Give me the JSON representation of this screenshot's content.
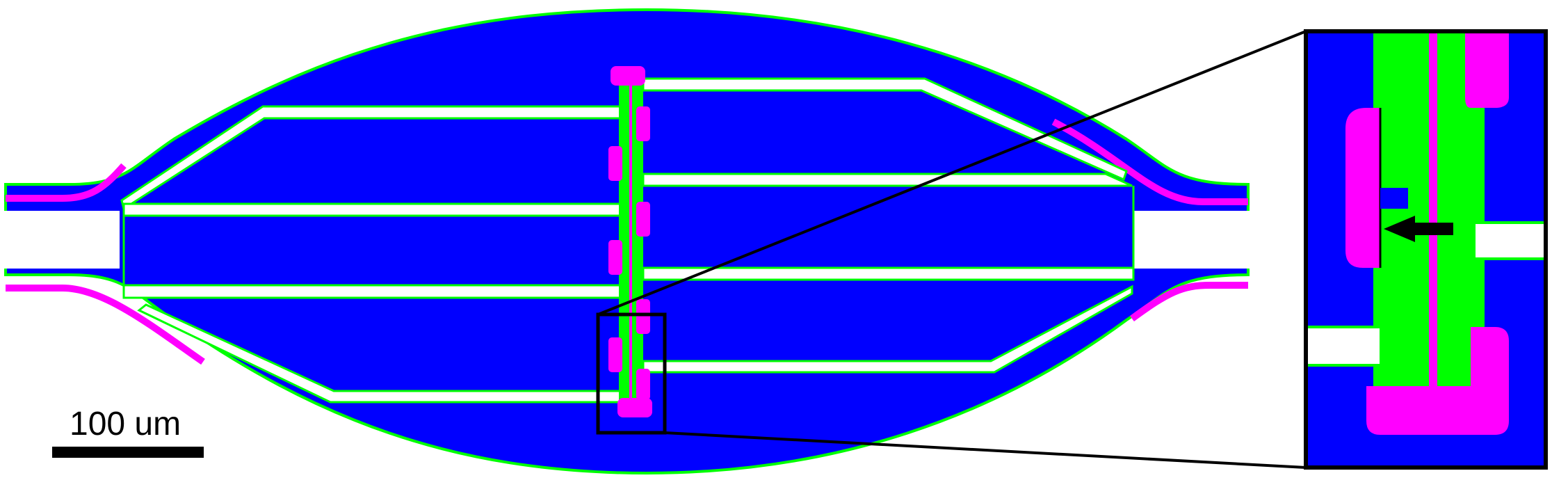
{
  "scale_bar": {
    "label": "100 um"
  },
  "colors": {
    "background": "#ffffff",
    "substrate": "#0000ff",
    "outline": "#00ff00",
    "electrode_stripe": "#ff00ff",
    "gap": "#ffffff",
    "annotation": "#000000"
  },
  "legend_icons": {
    "arrow": "left-arrow-icon"
  }
}
